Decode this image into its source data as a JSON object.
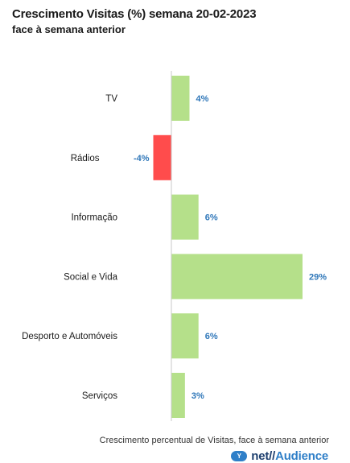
{
  "title": "Crescimento Visitas (%) semana 20-02-2023",
  "subtitle": "face à semana anterior",
  "footnote": "Crescimento percentual de Visitas, face à semana anterior",
  "logo": {
    "badge": "Y",
    "prefix": "net//",
    "name": "Audience"
  },
  "colors": {
    "positive": "#b5e08a",
    "negative": "#ff4c4c",
    "value_label": "#2f77b9",
    "axis": "#c8c8c8"
  },
  "chart_data": {
    "type": "bar",
    "orientation": "horizontal",
    "categories": [
      "TV",
      "Rádios",
      "Informação",
      "Social e Vida",
      "Desporto e Automóveis",
      "Serviços"
    ],
    "values": [
      4,
      -4,
      6,
      29,
      6,
      3
    ],
    "value_labels": [
      "4%",
      "-4%",
      "6%",
      "29%",
      "6%",
      "3%"
    ],
    "unit": "%",
    "xlim": [
      -4.5,
      29
    ],
    "grid": false,
    "legend": "none"
  }
}
